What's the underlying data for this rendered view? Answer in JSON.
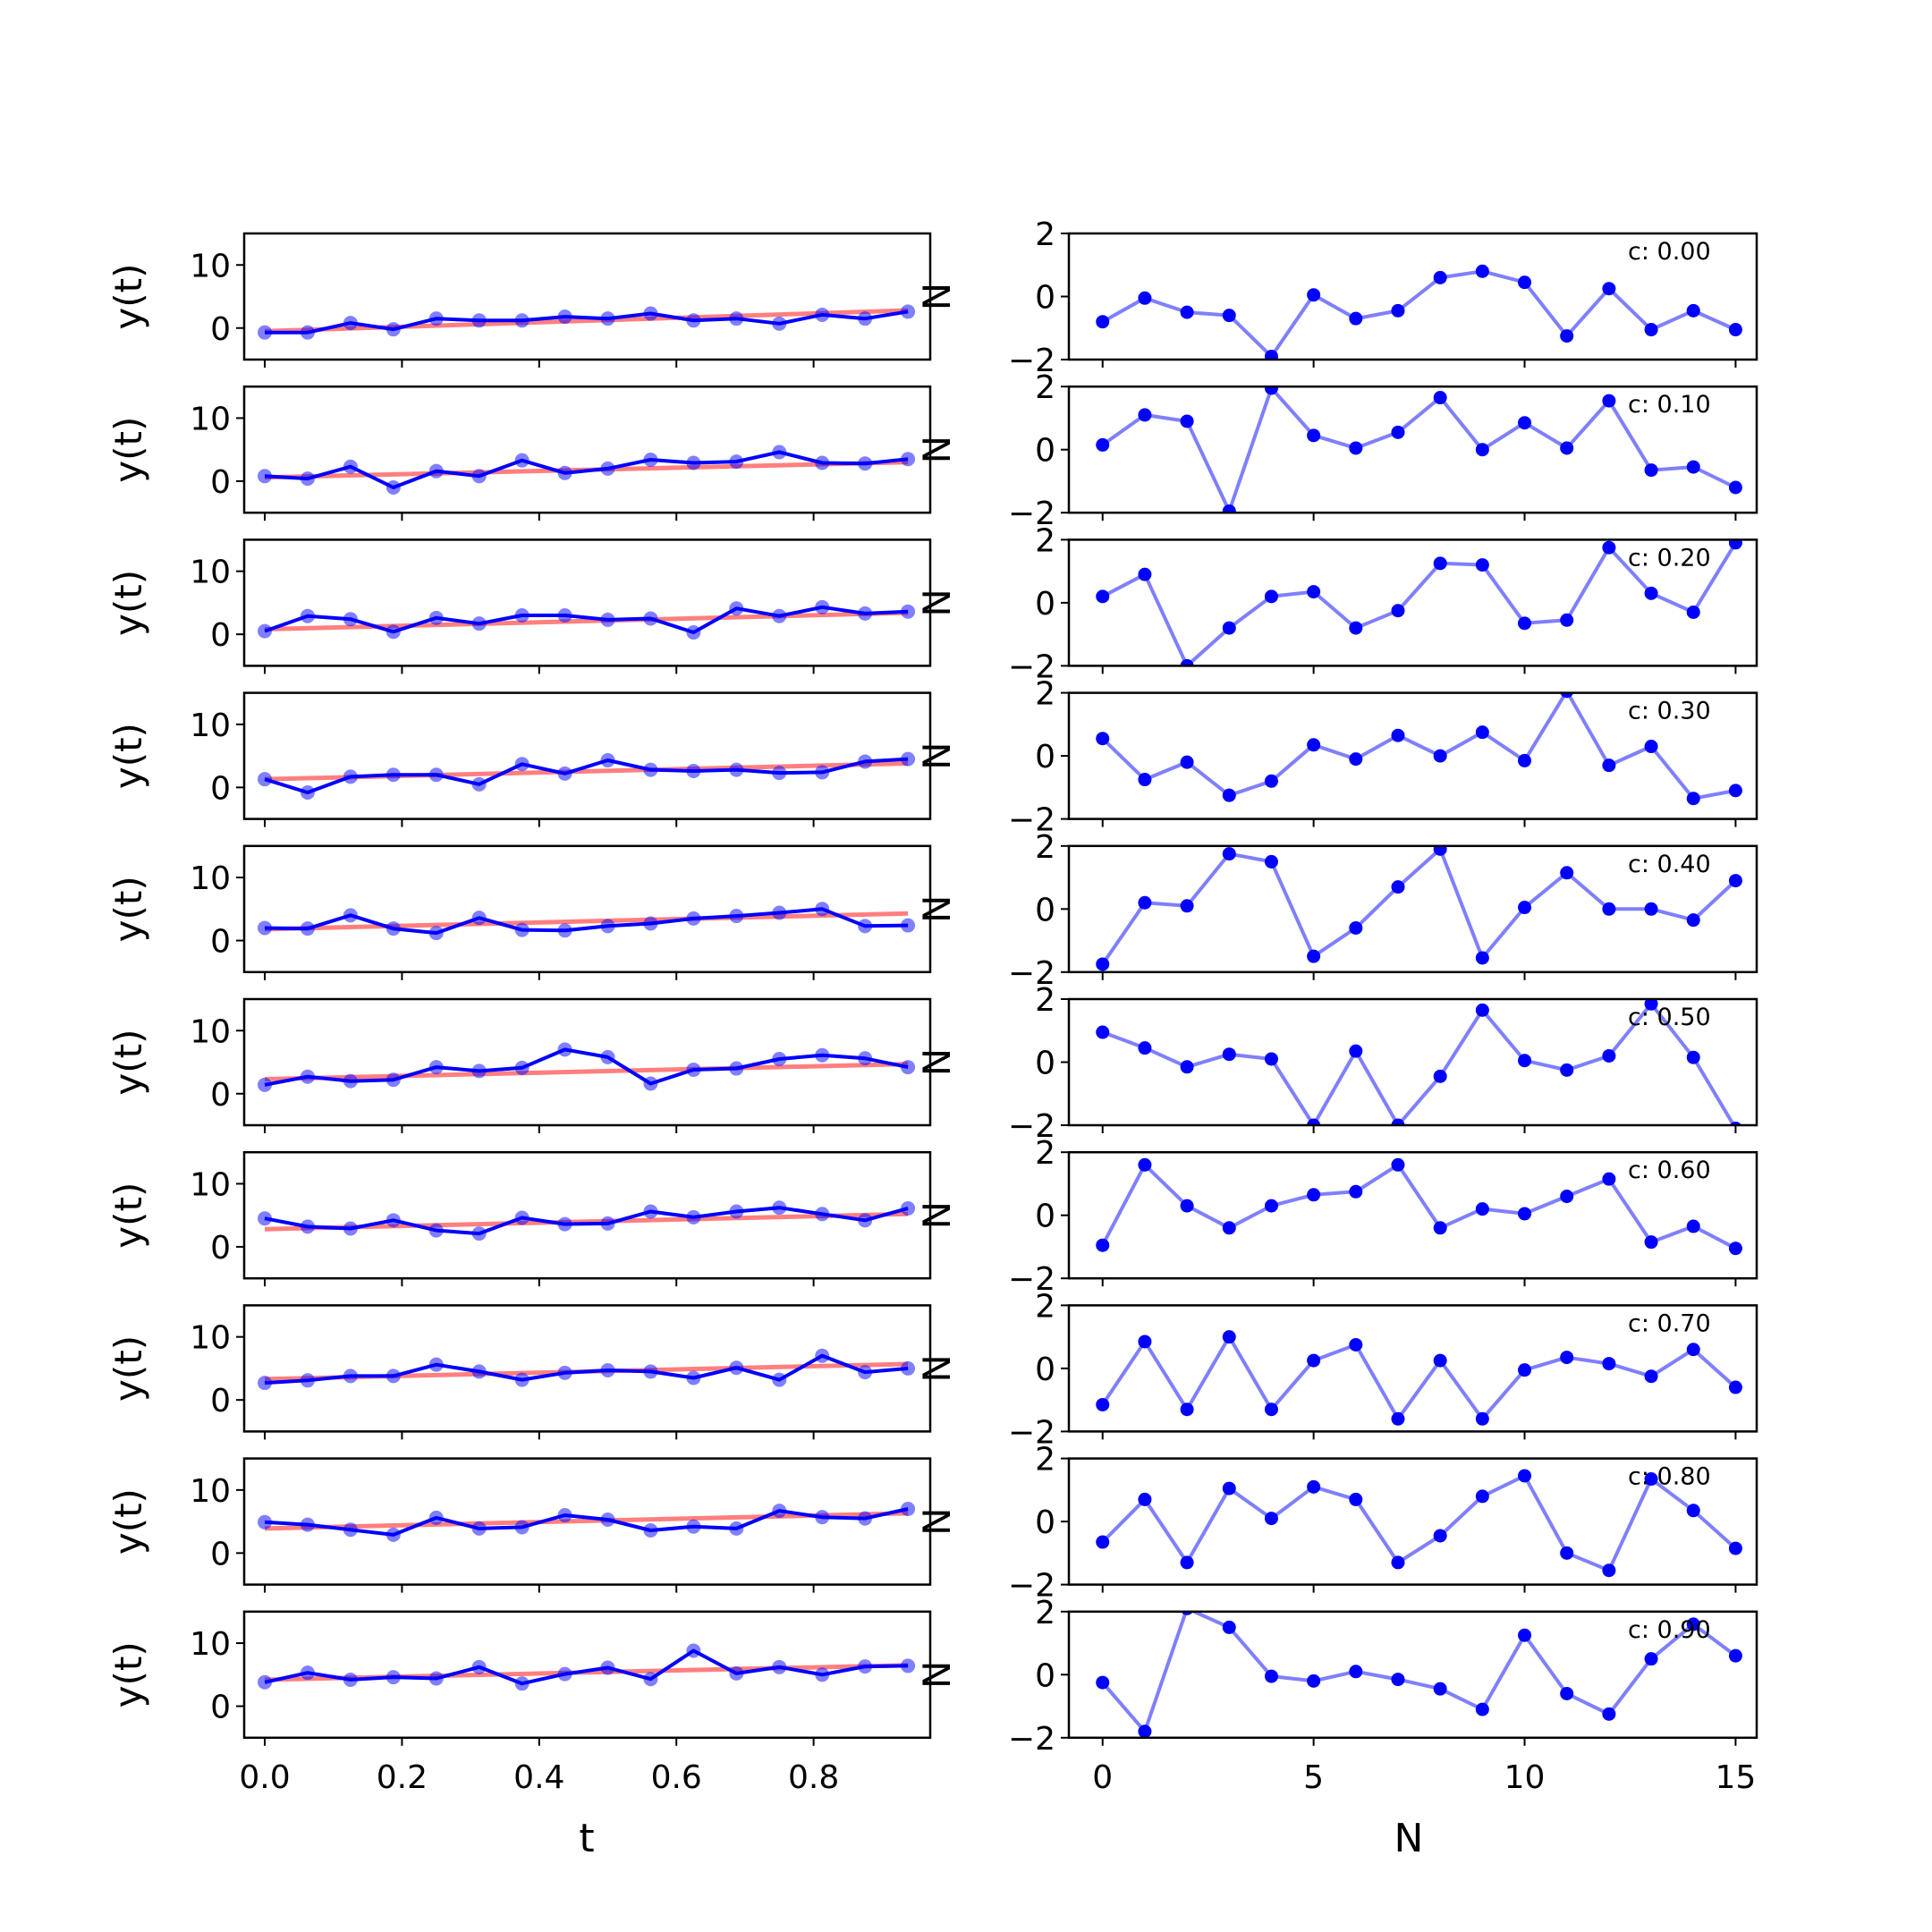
{
  "chart_data": {
    "type": "line",
    "left": {
      "x": [
        0.0,
        0.0625,
        0.125,
        0.1875,
        0.25,
        0.3125,
        0.375,
        0.4375,
        0.5,
        0.5625,
        0.625,
        0.6875,
        0.75,
        0.8125,
        0.875,
        0.9375
      ],
      "ylabel": "y(t)",
      "xlabel": "t",
      "ylim": [
        -5,
        15
      ],
      "xlim": [
        -0.03,
        0.97
      ],
      "yticks": [
        "0",
        "10"
      ],
      "xticks": [
        "0.0",
        "0.2",
        "0.4",
        "0.6",
        "0.8"
      ],
      "colors": {
        "data": "#0000ff",
        "trend": "#ff0000"
      },
      "series": [
        {
          "trend": [
            -0.5,
            2.8
          ],
          "values": [
            -0.7,
            -0.7,
            0.8,
            -0.2,
            1.5,
            1.2,
            1.2,
            1.8,
            1.5,
            2.3,
            1.2,
            1.5,
            0.7,
            2.1,
            1.5,
            2.6
          ]
        },
        {
          "trend": [
            0.6,
            3.0
          ],
          "values": [
            0.8,
            0.4,
            2.3,
            -1.0,
            1.6,
            0.8,
            3.3,
            1.3,
            2.0,
            3.4,
            2.9,
            3.1,
            4.6,
            2.9,
            2.8,
            3.5
          ]
        },
        {
          "trend": [
            0.8,
            3.4
          ],
          "values": [
            0.5,
            2.9,
            2.4,
            0.4,
            2.6,
            1.7,
            3.0,
            3.0,
            2.3,
            2.5,
            0.3,
            4.1,
            2.9,
            4.3,
            3.3,
            3.6
          ]
        },
        {
          "trend": [
            1.3,
            3.8
          ],
          "values": [
            1.3,
            -0.8,
            1.7,
            2.0,
            2.0,
            0.5,
            3.7,
            2.2,
            4.3,
            2.8,
            2.6,
            2.8,
            2.3,
            2.4,
            4.1,
            4.5
          ]
        },
        {
          "trend": [
            1.8,
            4.3
          ],
          "values": [
            2.0,
            1.9,
            4.0,
            1.9,
            1.2,
            3.6,
            1.7,
            1.6,
            2.3,
            2.7,
            3.5,
            3.9,
            4.4,
            5.0,
            2.3,
            2.4
          ]
        },
        {
          "trend": [
            2.3,
            4.7
          ],
          "values": [
            1.4,
            2.7,
            2.0,
            2.2,
            4.2,
            3.6,
            4.1,
            7.0,
            5.8,
            1.6,
            3.8,
            4.0,
            5.5,
            6.1,
            5.6,
            4.2
          ]
        },
        {
          "trend": [
            2.8,
            5.2
          ],
          "values": [
            4.5,
            3.2,
            2.9,
            4.2,
            2.6,
            2.1,
            4.6,
            3.6,
            3.7,
            5.6,
            4.7,
            5.6,
            6.2,
            5.2,
            4.2,
            6.1
          ]
        },
        {
          "trend": [
            3.3,
            5.7
          ],
          "values": [
            2.7,
            3.1,
            3.8,
            3.8,
            5.6,
            4.5,
            3.2,
            4.3,
            4.7,
            4.5,
            3.5,
            5.1,
            3.2,
            7.0,
            4.4,
            5.0
          ]
        },
        {
          "trend": [
            3.9,
            6.3
          ],
          "values": [
            4.9,
            4.5,
            3.7,
            2.9,
            5.6,
            3.9,
            4.1,
            6.0,
            5.3,
            3.6,
            4.2,
            3.9,
            6.7,
            5.7,
            5.5,
            7.0
          ]
        },
        {
          "trend": [
            4.2,
            6.5
          ],
          "values": [
            3.8,
            5.3,
            4.2,
            4.6,
            4.4,
            6.2,
            3.6,
            5.1,
            6.1,
            4.3,
            8.8,
            5.2,
            6.2,
            5.0,
            6.3,
            6.4
          ]
        }
      ]
    },
    "right": {
      "x": [
        0,
        1,
        2,
        3,
        4,
        5,
        6,
        7,
        8,
        9,
        10,
        11,
        12,
        13,
        14,
        15
      ],
      "ylabel": "N",
      "xlabel": "N",
      "ylim": [
        -2,
        2
      ],
      "xlim": [
        -0.8,
        15.5
      ],
      "yticks": [
        "−2",
        "0",
        "2"
      ],
      "xticks": [
        "0",
        "5",
        "10",
        "15"
      ],
      "colors": {
        "line": "#7f7fff",
        "points": "#0000ff"
      },
      "series": [
        {
          "name": "c: 0.00",
          "values": [
            -0.8,
            -0.05,
            -0.5,
            -0.6,
            -1.9,
            0.05,
            -0.7,
            -0.45,
            0.6,
            0.8,
            0.45,
            -1.25,
            0.25,
            -1.05,
            -0.45,
            -1.05
          ]
        },
        {
          "name": "c: 0.10",
          "values": [
            0.15,
            1.1,
            0.9,
            -1.95,
            1.95,
            0.45,
            0.05,
            0.55,
            1.65,
            0.0,
            0.85,
            0.05,
            1.55,
            -0.65,
            -0.55,
            -1.2
          ]
        },
        {
          "name": "c: 0.20",
          "values": [
            0.2,
            0.9,
            -2.0,
            -0.8,
            0.2,
            0.35,
            -0.8,
            -0.25,
            1.25,
            1.2,
            -0.65,
            -0.55,
            1.75,
            0.3,
            -0.3,
            1.9
          ]
        },
        {
          "name": "c: 0.30",
          "values": [
            0.55,
            -0.75,
            -0.2,
            -1.25,
            -0.8,
            0.35,
            -0.1,
            0.65,
            0.0,
            0.75,
            -0.15,
            2.05,
            -0.3,
            0.3,
            -1.35,
            -1.1
          ]
        },
        {
          "name": "c: 0.40",
          "values": [
            -1.75,
            0.2,
            0.1,
            1.75,
            1.5,
            -1.5,
            -0.6,
            0.7,
            1.9,
            -1.55,
            0.05,
            1.15,
            0.0,
            0.0,
            -0.35,
            0.9
          ]
        },
        {
          "name": "c: 0.50",
          "values": [
            0.95,
            0.45,
            -0.15,
            0.25,
            0.1,
            -2.0,
            0.35,
            -2.0,
            -0.45,
            1.65,
            0.05,
            -0.25,
            0.2,
            1.85,
            0.15,
            -2.1
          ]
        },
        {
          "name": "c: 0.60",
          "values": [
            -0.95,
            1.6,
            0.3,
            -0.4,
            0.3,
            0.65,
            0.75,
            1.6,
            -0.4,
            0.2,
            0.05,
            0.6,
            1.15,
            -0.85,
            -0.35,
            -1.05
          ]
        },
        {
          "name": "c: 0.70",
          "values": [
            -1.15,
            0.85,
            -1.3,
            1.0,
            -1.3,
            0.25,
            0.75,
            -1.6,
            0.25,
            -1.6,
            -0.05,
            0.35,
            0.15,
            -0.25,
            0.6,
            -0.6
          ]
        },
        {
          "name": "c: 0.80",
          "values": [
            -0.65,
            0.7,
            -1.3,
            1.05,
            0.1,
            1.1,
            0.7,
            -1.3,
            -0.45,
            0.8,
            1.45,
            -1.0,
            -1.55,
            1.35,
            0.35,
            -0.85
          ]
        },
        {
          "name": "c: 0.90",
          "values": [
            -0.25,
            -1.8,
            2.1,
            1.5,
            -0.05,
            -0.2,
            0.1,
            -0.15,
            -0.45,
            -1.1,
            1.25,
            -0.6,
            -1.25,
            0.5,
            1.6,
            0.6
          ]
        }
      ]
    }
  }
}
